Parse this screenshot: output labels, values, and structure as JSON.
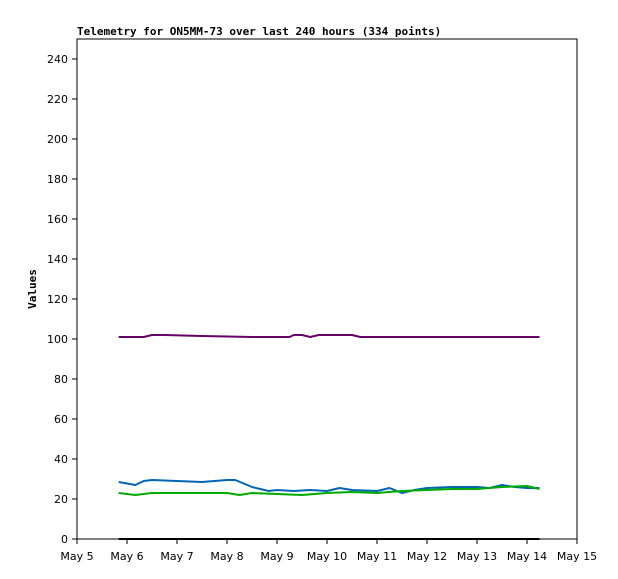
{
  "chart_data": {
    "type": "line",
    "title": "Telemetry for ON5MM-73 over last 240 hours (334 points)",
    "xlabel": "",
    "ylabel": "Values",
    "x_ticks": [
      "May 5",
      "May 6",
      "May 7",
      "May 8",
      "May 9",
      "May 10",
      "May 11",
      "May 12",
      "May 13",
      "May 14",
      "May 15"
    ],
    "xlim": [
      "May 5",
      "May 15"
    ],
    "ylim": [
      0,
      250
    ],
    "y_ticks": [
      0,
      20,
      40,
      60,
      80,
      100,
      120,
      140,
      160,
      180,
      200,
      220,
      240
    ],
    "grid": false,
    "legend": "none",
    "series": [
      {
        "color": "#660066",
        "x": [
          "May 5 20:00",
          "May 6 08:00",
          "May 6 12:00",
          "May 6 18:00",
          "May 7 12:00",
          "May 8 12:00",
          "May 9 06:00",
          "May 9 08:00",
          "May 9 12:00",
          "May 9 16:00",
          "May 9 20:00",
          "May 10 12:00",
          "May 10 16:00",
          "May 11 12:00",
          "May 12 12:00",
          "May 13 12:00",
          "May 14 06:00"
        ],
        "y": [
          101,
          101,
          102,
          102,
          101.5,
          101,
          101,
          102,
          102,
          101,
          102,
          102,
          101,
          101,
          101,
          101,
          101
        ]
      },
      {
        "color": "#0066b3",
        "x": [
          "May 5 20:00",
          "May 6 04:00",
          "May 6 08:00",
          "May 6 12:00",
          "May 7 00:00",
          "May 7 12:00",
          "May 8 00:00",
          "May 8 04:00",
          "May 8 12:00",
          "May 8 20:00",
          "May 9 00:00",
          "May 9 08:00",
          "May 9 16:00",
          "May 10 00:00",
          "May 10 06:00",
          "May 10 12:00",
          "May 11 00:00",
          "May 11 06:00",
          "May 11 12:00",
          "May 11 18:00",
          "May 12 00:00",
          "May 12 12:00",
          "May 13 00:00",
          "May 13 06:00",
          "May 13 12:00",
          "May 13 18:00",
          "May 14 00:00",
          "May 14 06:00"
        ],
        "y": [
          28.5,
          27,
          29,
          29.5,
          29,
          28.5,
          29.5,
          29.5,
          26,
          24,
          24.5,
          24,
          24.5,
          24,
          25.5,
          24.5,
          24,
          25.5,
          23,
          24.5,
          25.5,
          26,
          26,
          25.5,
          27,
          26,
          25.5,
          25.5
        ]
      },
      {
        "color": "#00aa00",
        "x": [
          "May 5 20:00",
          "May 6 04:00",
          "May 6 12:00",
          "May 7 12:00",
          "May 8 00:00",
          "May 8 06:00",
          "May 8 12:00",
          "May 9 00:00",
          "May 9 12:00",
          "May 10 00:00",
          "May 10 12:00",
          "May 11 00:00",
          "May 11 12:00",
          "May 12 00:00",
          "May 12 12:00",
          "May 13 00:00",
          "May 13 12:00",
          "May 14 00:00",
          "May 14 06:00"
        ],
        "y": [
          23,
          22,
          23,
          23,
          23,
          22,
          23,
          22.5,
          22,
          23,
          23.5,
          23,
          24,
          24.5,
          25,
          25,
          26,
          26.5,
          25
        ]
      },
      {
        "color": "#000000",
        "x": [
          "May 5 20:00",
          "May 14 06:00"
        ],
        "y": [
          0,
          0
        ]
      }
    ]
  }
}
